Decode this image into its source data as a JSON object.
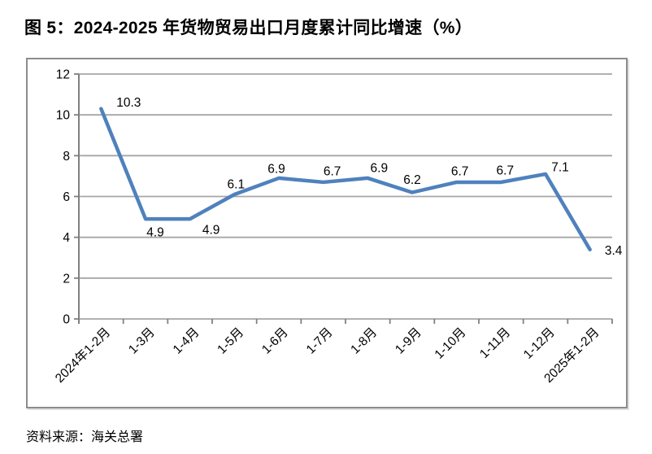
{
  "title": "图 5：2024-2025 年货物贸易出口月度累计同比增速（%）",
  "source": "资料来源：海关总署",
  "chart_data": {
    "type": "line",
    "title": "图 5：2024-2025 年货物贸易出口月度累计同比增速（%）",
    "categories": [
      "2024年1-2月",
      "1-3月",
      "1-4月",
      "1-5月",
      "1-6月",
      "1-7月",
      "1-8月",
      "1-9月",
      "1-10月",
      "1-11月",
      "1-12月",
      "2025年1-2月"
    ],
    "values": [
      10.3,
      4.9,
      4.9,
      6.1,
      6.9,
      6.7,
      6.9,
      6.2,
      6.7,
      6.7,
      7.1,
      3.4
    ],
    "label_positions": [
      "above-right",
      "below",
      "below-right",
      "above",
      "above",
      "above",
      "above",
      "above",
      "above",
      "above",
      "above-right",
      "right"
    ],
    "xlabel": "",
    "ylabel": "",
    "ylim": [
      0,
      12
    ],
    "yticks": [
      0,
      2,
      4,
      6,
      8,
      10,
      12
    ],
    "grid": true,
    "legend": "none",
    "line_color": "#4F81BD",
    "grid_color": "#A6A6A6",
    "axis_color": "#808080"
  }
}
